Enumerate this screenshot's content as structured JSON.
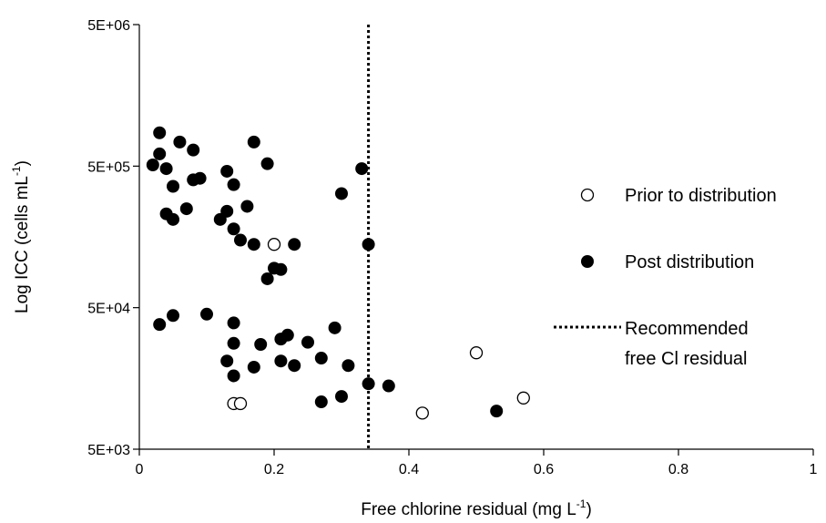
{
  "chart_data": {
    "type": "scatter",
    "title": "",
    "xlabel": "Free chlorine residual (mg L",
    "xlabel_sup": "-1",
    "xlabel_end": ")",
    "ylabel": "Log ICC (cells mL",
    "ylabel_sup": "-1",
    "ylabel_end": ")",
    "xlim": [
      0,
      1
    ],
    "ylim": [
      5000,
      5000000
    ],
    "yscale": "log",
    "x_ticks": [
      "0",
      "0.2",
      "0.4",
      "0.6",
      "0.8",
      "1"
    ],
    "x_tick_values": [
      0,
      0.2,
      0.4,
      0.6,
      0.8,
      1
    ],
    "y_ticks": [
      "5E+03",
      "5E+04",
      "5E+05",
      "5E+06"
    ],
    "y_tick_values": [
      5000,
      50000,
      500000,
      5000000
    ],
    "grid": false,
    "legend_position": "right",
    "series": [
      {
        "name": "Prior to distribution",
        "marker": "open-circle",
        "points": [
          [
            0.2,
            140000
          ],
          [
            0.14,
            10500
          ],
          [
            0.15,
            10500
          ],
          [
            0.42,
            9000
          ],
          [
            0.5,
            24000
          ],
          [
            0.57,
            11500
          ]
        ]
      },
      {
        "name": "Post distribution",
        "marker": "filled-circle",
        "points": [
          [
            0.02,
            510000
          ],
          [
            0.03,
            860000
          ],
          [
            0.03,
            610000
          ],
          [
            0.04,
            480000
          ],
          [
            0.06,
            740000
          ],
          [
            0.08,
            650000
          ],
          [
            0.05,
            360000
          ],
          [
            0.08,
            400000
          ],
          [
            0.09,
            410000
          ],
          [
            0.04,
            230000
          ],
          [
            0.05,
            210000
          ],
          [
            0.07,
            250000
          ],
          [
            0.13,
            460000
          ],
          [
            0.14,
            370000
          ],
          [
            0.12,
            210000
          ],
          [
            0.13,
            240000
          ],
          [
            0.14,
            180000
          ],
          [
            0.15,
            150000
          ],
          [
            0.16,
            260000
          ],
          [
            0.17,
            740000
          ],
          [
            0.19,
            520000
          ],
          [
            0.33,
            480000
          ],
          [
            0.3,
            320000
          ],
          [
            0.17,
            140000
          ],
          [
            0.23,
            140000
          ],
          [
            0.34,
            140000
          ],
          [
            0.2,
            95000
          ],
          [
            0.21,
            93000
          ],
          [
            0.19,
            80000
          ],
          [
            0.03,
            38000
          ],
          [
            0.05,
            44000
          ],
          [
            0.1,
            45000
          ],
          [
            0.14,
            39000
          ],
          [
            0.29,
            36000
          ],
          [
            0.14,
            28000
          ],
          [
            0.18,
            27500
          ],
          [
            0.21,
            30000
          ],
          [
            0.22,
            32000
          ],
          [
            0.25,
            28500
          ],
          [
            0.13,
            21000
          ],
          [
            0.17,
            19000
          ],
          [
            0.21,
            21000
          ],
          [
            0.23,
            19500
          ],
          [
            0.27,
            22000
          ],
          [
            0.31,
            19500
          ],
          [
            0.14,
            16500
          ],
          [
            0.34,
            14500
          ],
          [
            0.37,
            14000
          ],
          [
            0.27,
            10800
          ],
          [
            0.3,
            11800
          ],
          [
            0.53,
            9300
          ]
        ]
      }
    ],
    "reference_line": {
      "name": "Recommended free Cl residual",
      "name_line1": "Recommended",
      "name_line2": "free Cl residual",
      "x": 0.34,
      "style": "dotted"
    }
  }
}
